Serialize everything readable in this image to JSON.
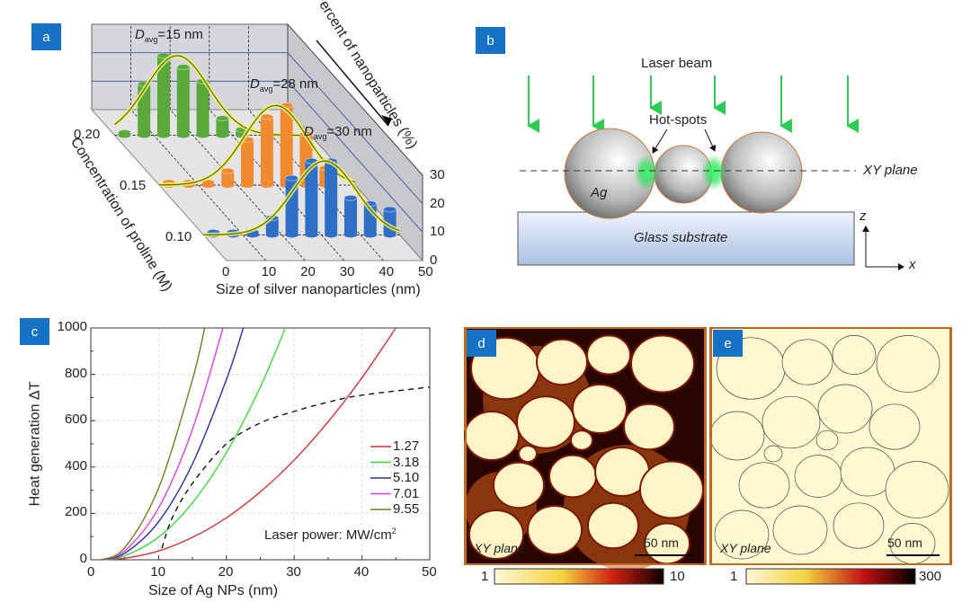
{
  "panels": {
    "a": {
      "label": "a",
      "y_axis_title": "Percent of nanoparticles (%)",
      "z_axis_title": "Concentration of proline (M)",
      "x_axis_title": "Size of silver nanoparticles (nm)",
      "x_ticks": [
        "0",
        "10",
        "20",
        "30",
        "40",
        "50"
      ],
      "y_ticks": [
        "0",
        "10",
        "20",
        "30"
      ],
      "rows": [
        {
          "conc": "0.20",
          "d_prefix": "D",
          "d_sub": "avg",
          "d_value": "=15 nm",
          "color": "#5aa83c",
          "values": [
            1,
            18,
            28,
            24,
            19,
            6,
            2
          ]
        },
        {
          "conc": "0.15",
          "d_prefix": "D",
          "d_sub": "avg",
          "d_value": "=28 nm",
          "color": "#f08a30",
          "values": [
            1,
            1,
            1,
            5,
            16,
            24,
            28,
            18,
            6
          ]
        },
        {
          "conc": "0.10",
          "d_prefix": "D",
          "d_sub": "avg",
          "d_value": "=30 nm",
          "color": "#2f6fc6",
          "values": [
            1,
            1,
            1,
            6,
            20,
            26,
            26,
            13,
            11,
            9
          ]
        }
      ]
    },
    "b": {
      "label": "b",
      "laser_beam": "Laser beam",
      "hot_spots": "Hot-spots",
      "xy_plane": "XY plane",
      "ag": "Ag",
      "substrate": "Glass substrate",
      "axis_z": "z",
      "axis_x": "x"
    },
    "c": {
      "label": "c"
    },
    "d": {
      "label": "d",
      "plane": "XY plane",
      "scale": "50 nm",
      "cbar_min": "1",
      "cbar_max": "10"
    },
    "e": {
      "label": "e",
      "plane": "XY plane",
      "scale": "50 nm",
      "cbar_min": "1",
      "cbar_max": "300"
    }
  },
  "chart_data": [
    {
      "type": "line",
      "title": "",
      "xlabel": "Size of Ag NPs (nm)",
      "ylabel": "Heat generation ΔT",
      "xlim": [
        0,
        50
      ],
      "ylim": [
        0,
        1000
      ],
      "x_ticks": [
        "0",
        "10",
        "20",
        "30",
        "40",
        "50"
      ],
      "y_ticks": [
        "0",
        "200",
        "400",
        "600",
        "800",
        "1000"
      ],
      "grid": true,
      "legend_position": "bottom-right",
      "legend_note": "Laser power: MW/cm",
      "legend_note_sup": "2",
      "series": [
        {
          "name": "1.27",
          "color": "#d8303a",
          "x": [
            1.5,
            5,
            10,
            15,
            20,
            25,
            30,
            35,
            40,
            45
          ],
          "y": [
            0,
            6.5,
            38,
            97,
            181,
            293,
            430,
            595,
            785,
            1000
          ]
        },
        {
          "name": "3.18",
          "color": "#3ed83e",
          "x": [
            1.5,
            5,
            10,
            15,
            20,
            25,
            28.7
          ],
          "y": [
            0,
            17,
            98,
            246,
            462,
            745,
            1000
          ]
        },
        {
          "name": "5.10",
          "color": "#2a2ea8",
          "x": [
            1.5,
            5,
            10,
            15,
            20,
            22.5
          ],
          "y": [
            0,
            28,
            164,
            414,
            777,
            1000
          ]
        },
        {
          "name": "7.01",
          "color": "#e040e0",
          "x": [
            1.5,
            5,
            10,
            15,
            19.5
          ],
          "y": [
            0,
            38,
            223,
            563,
            1000
          ]
        },
        {
          "name": "9.55",
          "color": "#7a7a20",
          "x": [
            1.5,
            5,
            10,
            15,
            16.8
          ],
          "y": [
            0,
            52,
            309,
            778,
            1000
          ]
        },
        {
          "name": "",
          "color": "#111111",
          "dashed": true,
          "x": [
            10.5,
            12,
            15,
            20,
            25,
            30,
            35,
            40,
            50
          ],
          "y": [
            50,
            180,
            330,
            500,
            590,
            640,
            680,
            710,
            745
          ]
        }
      ]
    },
    {
      "type": "bar",
      "title": "",
      "xlabel": "Size of silver nanoparticles (nm)",
      "ylabel": "Percent of nanoparticles (%)",
      "zlabel": "Concentration of proline (M)",
      "categories_nm": [
        0,
        5,
        10,
        15,
        20,
        25,
        30,
        35,
        40,
        45
      ],
      "ylim": [
        0,
        30
      ],
      "series": [
        {
          "name": "0.20",
          "values": [
            1,
            18,
            28,
            24,
            19,
            6,
            2
          ]
        },
        {
          "name": "0.15",
          "values": [
            1,
            1,
            1,
            5,
            16,
            24,
            28,
            18,
            6
          ]
        },
        {
          "name": "0.10",
          "values": [
            1,
            1,
            1,
            6,
            20,
            26,
            26,
            13,
            11,
            9
          ]
        }
      ]
    }
  ]
}
